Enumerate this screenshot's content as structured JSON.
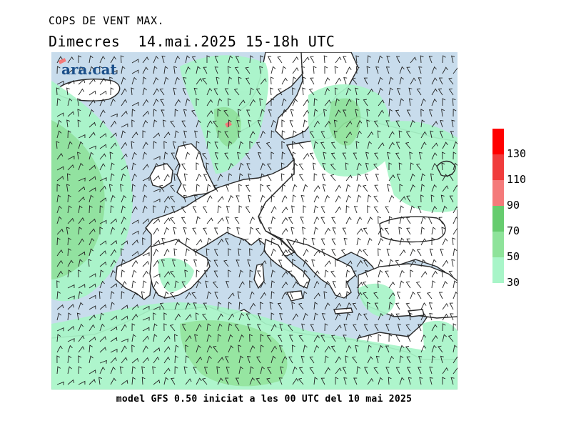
{
  "header": {
    "title": "COPS DE VENT MAX.",
    "subtitle": "Dimecres  14.mai.2025 15-18h UTC"
  },
  "logo": {
    "text": "ara.cat"
  },
  "footer": {
    "text": "model GFS 0.50 iniciat a les 00 UTC del 10 mai 2025"
  },
  "legend": {
    "bands": [
      {
        "from": 30,
        "to": 50,
        "color": "#a8f5c8"
      },
      {
        "from": 50,
        "to": 70,
        "color": "#8ee39a"
      },
      {
        "from": 70,
        "to": 90,
        "color": "#66cc6e"
      },
      {
        "from": 90,
        "to": 110,
        "color": "#f47a7a"
      },
      {
        "from": 110,
        "to": 130,
        "color": "#f03c3c"
      },
      {
        "from": 130,
        "to": 150,
        "color": "#ff0000"
      }
    ],
    "labels": [
      "30",
      "50",
      "70",
      "90",
      "110",
      "130"
    ]
  },
  "colors": {
    "sea": "#c8dcec",
    "land": "#ffffff",
    "coast": "#2a2a2a",
    "barb": "#222222"
  }
}
